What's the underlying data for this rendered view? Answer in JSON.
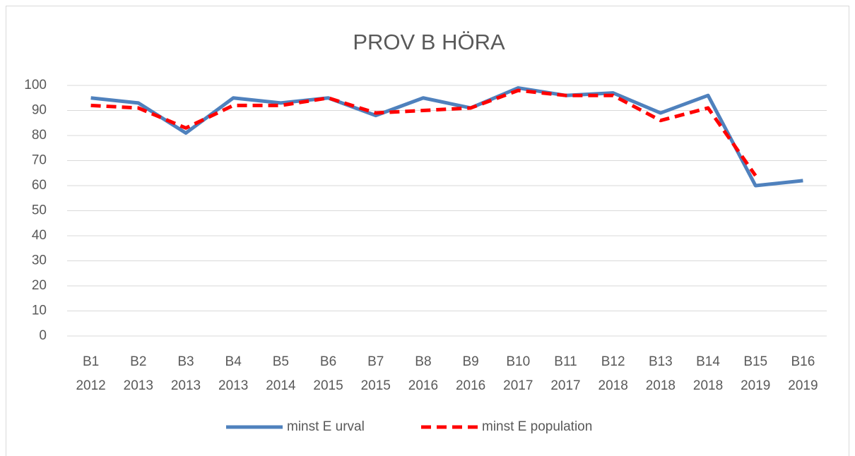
{
  "chart_data": {
    "type": "line",
    "title": "PROV B HÖRA",
    "categories": [
      [
        "B1",
        "2012"
      ],
      [
        "B2",
        "2013"
      ],
      [
        "B3",
        "2013"
      ],
      [
        "B4",
        "2013"
      ],
      [
        "B5",
        "2014"
      ],
      [
        "B6",
        "2015"
      ],
      [
        "B7",
        "2015"
      ],
      [
        "B8",
        "2016"
      ],
      [
        "B9",
        "2016"
      ],
      [
        "B10",
        "2017"
      ],
      [
        "B11",
        "2017"
      ],
      [
        "B12",
        "2018"
      ],
      [
        "B13",
        "2018"
      ],
      [
        "B14",
        "2018"
      ],
      [
        "B15",
        "2019"
      ],
      [
        "B16",
        "2019"
      ]
    ],
    "series": [
      {
        "name": "minst E urval",
        "color": "#4f81bd",
        "dash": false,
        "values": [
          95,
          93,
          81,
          95,
          93,
          95,
          88,
          95,
          91,
          99,
          96,
          97,
          89,
          96,
          60,
          62
        ]
      },
      {
        "name": "minst E population",
        "color": "#ff0000",
        "dash": true,
        "values": [
          92,
          91,
          83,
          92,
          92,
          95,
          89,
          90,
          91,
          98,
          96,
          96,
          86,
          91,
          64,
          null
        ]
      }
    ],
    "ylim": [
      0,
      100
    ],
    "yticks": [
      0,
      10,
      20,
      30,
      40,
      50,
      60,
      70,
      80,
      90,
      100
    ],
    "grid": true,
    "legend": "bottom"
  }
}
